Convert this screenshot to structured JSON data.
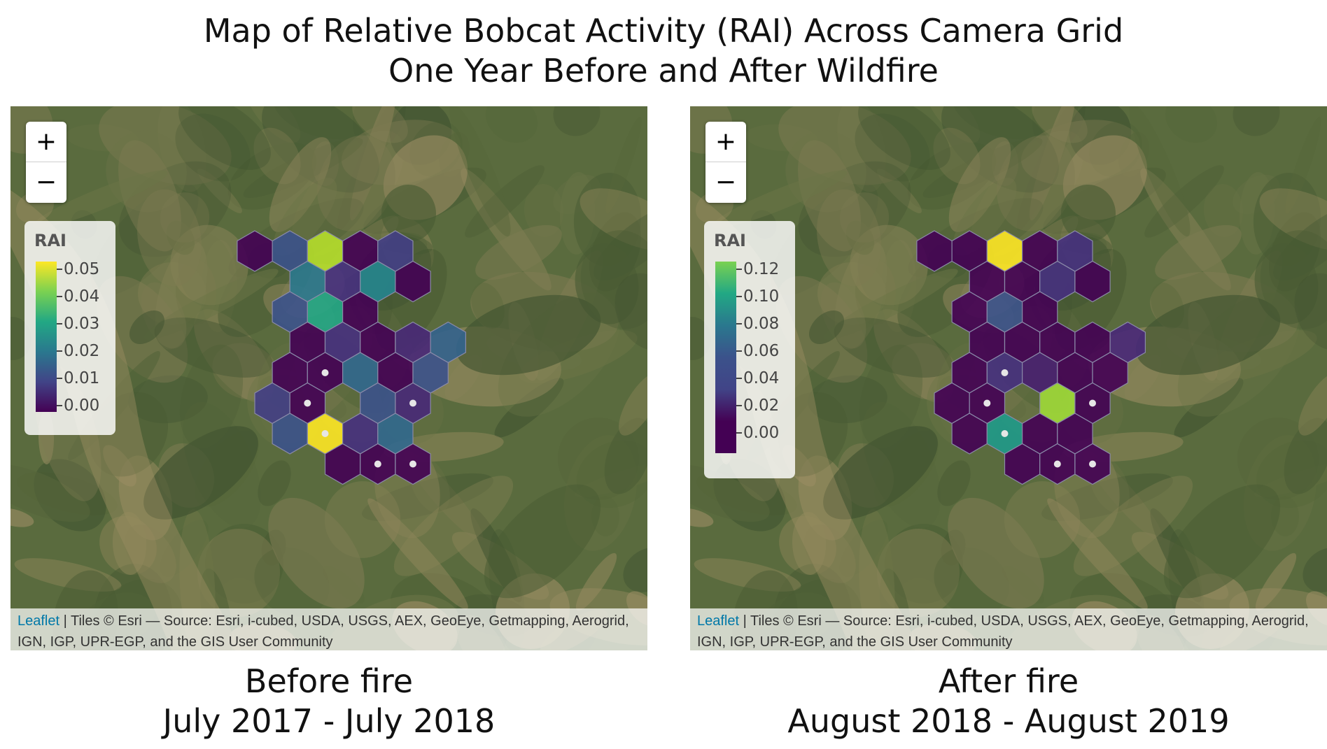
{
  "title": {
    "line1": "Map of Relative Bobcat Activity (RAI) Across Camera Grid",
    "line2": "One Year Before and After Wildfire"
  },
  "colors": {
    "terrain_base": "#5a6b3e",
    "hex_stroke": "#8a8aa8",
    "camera_dot": "#e6e6e6"
  },
  "panels": [
    {
      "id": "before",
      "subtitle_line1": "Before fire",
      "subtitle_line2": "July 2017 - July 2018",
      "zoom_in_label": "+",
      "zoom_out_label": "−",
      "legend": {
        "title": "RAI",
        "ticks": [
          "0.05",
          "0.04",
          "0.03",
          "0.02",
          "0.01",
          "0.00"
        ],
        "tick_values": [
          0.05,
          0.04,
          0.03,
          0.02,
          0.01,
          0.0
        ],
        "min": 0.0,
        "max": 0.05,
        "colors_top_to_bottom": [
          "#fde725",
          "#7ad151",
          "#22a884",
          "#2a788e",
          "#414487",
          "#440154"
        ]
      },
      "attribution_link": "Leaflet",
      "attribution_text": " | Tiles © Esri — Source: Esri, i-cubed, USDA, USGS, AEX, GeoEye, Getmapping, Aerogrid, IGN, IGP, UPR-EGP, and the GIS User Community",
      "cells": [
        {
          "col": 0,
          "row": 0,
          "color": "#440154"
        },
        {
          "col": 1,
          "row": 0,
          "color": "#3b528b"
        },
        {
          "col": 2,
          "row": 0,
          "color": "#b5de2b"
        },
        {
          "col": 3,
          "row": 0,
          "color": "#440154"
        },
        {
          "col": 4,
          "row": 0,
          "color": "#433e85"
        },
        {
          "col": 1,
          "row": 1,
          "color": "#2a788e"
        },
        {
          "col": 2,
          "row": 1,
          "color": "#46307e"
        },
        {
          "col": 3,
          "row": 1,
          "color": "#25858e"
        },
        {
          "col": 4,
          "row": 1,
          "color": "#440154"
        },
        {
          "col": 1,
          "row": 2,
          "color": "#3b528b"
        },
        {
          "col": 2,
          "row": 2,
          "color": "#21a685"
        },
        {
          "col": 3,
          "row": 2,
          "color": "#440154"
        },
        {
          "col": 1,
          "row": 3,
          "color": "#440154"
        },
        {
          "col": 2,
          "row": 3,
          "color": "#46307e"
        },
        {
          "col": 3,
          "row": 3,
          "color": "#440154"
        },
        {
          "col": 4,
          "row": 3,
          "color": "#482878"
        },
        {
          "col": 5,
          "row": 3,
          "color": "#33638d"
        },
        {
          "col": 1,
          "row": 4,
          "color": "#440154"
        },
        {
          "col": 2,
          "row": 4,
          "color": "#440154",
          "dot": true
        },
        {
          "col": 3,
          "row": 4,
          "color": "#31688e"
        },
        {
          "col": 4,
          "row": 4,
          "color": "#440154"
        },
        {
          "col": 5,
          "row": 4,
          "color": "#3b528b"
        },
        {
          "col": 0,
          "row": 5,
          "color": "#433e85"
        },
        {
          "col": 1,
          "row": 5,
          "color": "#440154",
          "dot": true
        },
        {
          "col": 3,
          "row": 5,
          "color": "#3b528b"
        },
        {
          "col": 4,
          "row": 5,
          "color": "#482878",
          "dot": true
        },
        {
          "col": 1,
          "row": 6,
          "color": "#3b528b"
        },
        {
          "col": 2,
          "row": 6,
          "color": "#fde725",
          "dot": true
        },
        {
          "col": 3,
          "row": 6,
          "color": "#46307e"
        },
        {
          "col": 4,
          "row": 6,
          "color": "#31688e"
        },
        {
          "col": 2,
          "row": 7,
          "color": "#440154"
        },
        {
          "col": 3,
          "row": 7,
          "color": "#440154",
          "dot": true
        },
        {
          "col": 4,
          "row": 7,
          "color": "#440154",
          "dot": true
        }
      ]
    },
    {
      "id": "after",
      "subtitle_line1": "After fire",
      "subtitle_line2": "August 2018 - August 2019",
      "zoom_in_label": "+",
      "zoom_out_label": "−",
      "legend": {
        "title": "RAI",
        "ticks": [
          "0.12",
          "0.10",
          "0.08",
          "0.06",
          "0.04",
          "0.02",
          "0.00"
        ],
        "tick_values": [
          0.12,
          0.1,
          0.08,
          0.06,
          0.04,
          0.02,
          0.0
        ],
        "min": -0.01,
        "max": 0.13,
        "colors_top_to_bottom": [
          "#7ad151",
          "#22a884",
          "#2a788e",
          "#3b528b",
          "#414487",
          "#440154",
          "#440154"
        ]
      },
      "attribution_link": "Leaflet",
      "attribution_text": " | Tiles © Esri — Source: Esri, i-cubed, USDA, USGS, AEX, GeoEye, Getmapping, Aerogrid, IGN, IGP, UPR-EGP, and the GIS User Community",
      "cells": [
        {
          "col": 0,
          "row": 0,
          "color": "#440154"
        },
        {
          "col": 1,
          "row": 0,
          "color": "#440154"
        },
        {
          "col": 2,
          "row": 0,
          "color": "#fde725"
        },
        {
          "col": 3,
          "row": 0,
          "color": "#440154"
        },
        {
          "col": 4,
          "row": 0,
          "color": "#46307e"
        },
        {
          "col": 1,
          "row": 1,
          "color": "#440154"
        },
        {
          "col": 2,
          "row": 1,
          "color": "#440154"
        },
        {
          "col": 3,
          "row": 1,
          "color": "#46307e"
        },
        {
          "col": 4,
          "row": 1,
          "color": "#440154"
        },
        {
          "col": 1,
          "row": 2,
          "color": "#440154"
        },
        {
          "col": 2,
          "row": 2,
          "color": "#3b528b"
        },
        {
          "col": 3,
          "row": 2,
          "color": "#440154"
        },
        {
          "col": 1,
          "row": 3,
          "color": "#440154"
        },
        {
          "col": 2,
          "row": 3,
          "color": "#440154"
        },
        {
          "col": 3,
          "row": 3,
          "color": "#440154"
        },
        {
          "col": 4,
          "row": 3,
          "color": "#440154"
        },
        {
          "col": 5,
          "row": 3,
          "color": "#482878"
        },
        {
          "col": 1,
          "row": 4,
          "color": "#440154"
        },
        {
          "col": 2,
          "row": 4,
          "color": "#46307e",
          "dot": true
        },
        {
          "col": 3,
          "row": 4,
          "color": "#481f70"
        },
        {
          "col": 4,
          "row": 4,
          "color": "#440154"
        },
        {
          "col": 5,
          "row": 4,
          "color": "#440154"
        },
        {
          "col": 0,
          "row": 5,
          "color": "#440154"
        },
        {
          "col": 1,
          "row": 5,
          "color": "#440154",
          "dot": true
        },
        {
          "col": 3,
          "row": 5,
          "color": "#a0da39"
        },
        {
          "col": 4,
          "row": 5,
          "color": "#440154",
          "dot": true
        },
        {
          "col": 1,
          "row": 6,
          "color": "#440154"
        },
        {
          "col": 2,
          "row": 6,
          "color": "#1f9a8a",
          "dot": true
        },
        {
          "col": 3,
          "row": 6,
          "color": "#440154"
        },
        {
          "col": 4,
          "row": 6,
          "color": "#440154"
        },
        {
          "col": 2,
          "row": 7,
          "color": "#440154"
        },
        {
          "col": 3,
          "row": 7,
          "color": "#440154",
          "dot": true
        },
        {
          "col": 4,
          "row": 7,
          "color": "#440154",
          "dot": true
        }
      ]
    }
  ]
}
